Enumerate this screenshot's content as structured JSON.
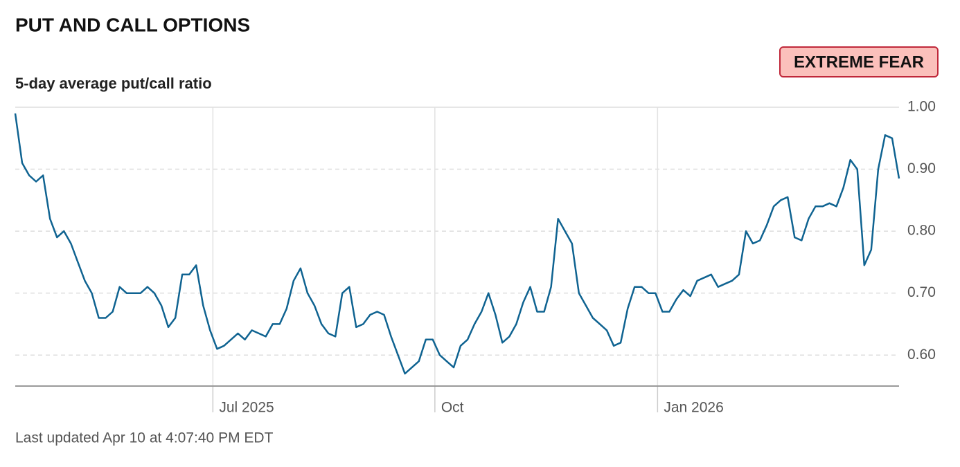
{
  "chart_data": {
    "type": "line",
    "title": "PUT AND CALL OPTIONS",
    "subtitle": "5-day average put/call ratio",
    "series": [
      {
        "name": "5-day average put/call ratio",
        "color": "#0f6391",
        "values": [
          0.99,
          0.91,
          0.89,
          0.88,
          0.89,
          0.82,
          0.79,
          0.8,
          0.78,
          0.75,
          0.72,
          0.7,
          0.66,
          0.66,
          0.67,
          0.71,
          0.7,
          0.7,
          0.7,
          0.71,
          0.7,
          0.68,
          0.645,
          0.66,
          0.73,
          0.73,
          0.745,
          0.68,
          0.64,
          0.61,
          0.615,
          0.625,
          0.635,
          0.625,
          0.64,
          0.635,
          0.63,
          0.65,
          0.65,
          0.675,
          0.72,
          0.74,
          0.7,
          0.68,
          0.65,
          0.635,
          0.63,
          0.7,
          0.71,
          0.645,
          0.65,
          0.665,
          0.67,
          0.665,
          0.63,
          0.6,
          0.57,
          0.58,
          0.59,
          0.625,
          0.625,
          0.6,
          0.59,
          0.58,
          0.615,
          0.625,
          0.65,
          0.67,
          0.7,
          0.665,
          0.62,
          0.63,
          0.65,
          0.685,
          0.71,
          0.67,
          0.67,
          0.71,
          0.82,
          0.8,
          0.78,
          0.7,
          0.68,
          0.66,
          0.65,
          0.64,
          0.615,
          0.62,
          0.675,
          0.71,
          0.71,
          0.7,
          0.7,
          0.67,
          0.67,
          0.69,
          0.705,
          0.695,
          0.72,
          0.725,
          0.73,
          0.71,
          0.715,
          0.72,
          0.73,
          0.8,
          0.78,
          0.785,
          0.81,
          0.84,
          0.85,
          0.855,
          0.79,
          0.785,
          0.82,
          0.84,
          0.84,
          0.845,
          0.84,
          0.87,
          0.915,
          0.9,
          0.745,
          0.77,
          0.9,
          0.955,
          0.95,
          0.885
        ]
      }
    ],
    "xlim": [
      0,
      127
    ],
    "xticks": [
      {
        "value": 28.4,
        "label": "Jul 2025"
      },
      {
        "value": 60.3,
        "label": "Oct"
      },
      {
        "value": 92.3,
        "label": "Jan 2026"
      }
    ],
    "ylim": [
      0.55,
      1.0
    ],
    "yticks": [
      {
        "value": 0.6,
        "label": "0.60"
      },
      {
        "value": 0.7,
        "label": "0.70"
      },
      {
        "value": 0.8,
        "label": "0.80"
      },
      {
        "value": 0.9,
        "label": "0.90"
      },
      {
        "value": 1.0,
        "label": "1.00"
      }
    ],
    "grid": true
  },
  "badge": "EXTREME FEAR",
  "footer": "Last updated Apr 10 at 4:07:40 PM EDT"
}
